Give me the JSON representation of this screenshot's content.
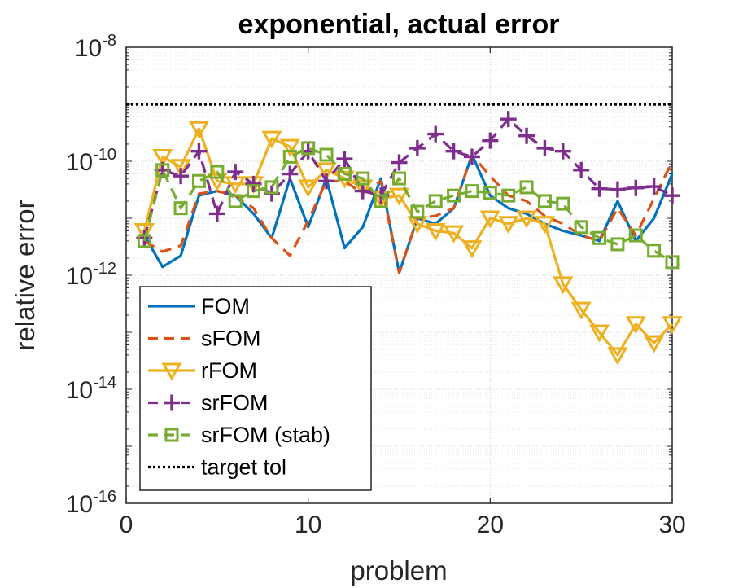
{
  "chart_data": {
    "type": "line",
    "title": "exponential, actual error",
    "xlabel": "problem",
    "ylabel": "relative error",
    "yscale": "log",
    "xlim": [
      0,
      30
    ],
    "ylim": [
      1e-16,
      1e-08
    ],
    "grid": true,
    "legend_position": "bottom-left",
    "x_ticks": [
      {
        "value": 0,
        "label": "0"
      },
      {
        "value": 10,
        "label": "10"
      },
      {
        "value": 20,
        "label": "20"
      },
      {
        "value": 30,
        "label": "30"
      }
    ],
    "y_ticks": [
      {
        "exp": -16,
        "base": "10",
        "sup": "-16"
      },
      {
        "exp": -14,
        "base": "10",
        "sup": "-14"
      },
      {
        "exp": -12,
        "base": "10",
        "sup": "-12"
      },
      {
        "exp": -10,
        "base": "10",
        "sup": "-10"
      },
      {
        "exp": -8,
        "base": "10",
        "sup": "-8"
      }
    ],
    "x": [
      1,
      2,
      3,
      4,
      5,
      6,
      7,
      8,
      9,
      10,
      11,
      12,
      13,
      14,
      15,
      16,
      17,
      18,
      19,
      20,
      21,
      22,
      23,
      24,
      25,
      26,
      27,
      28,
      29,
      30
    ],
    "series": [
      {
        "name": "FOM",
        "color": "#0072BD",
        "dash": "solid",
        "marker": "none",
        "values": [
          5e-12,
          1.4e-12,
          2.2e-12,
          2.5e-11,
          3e-11,
          2.5e-11,
          1.2e-11,
          4.5e-12,
          5e-11,
          7e-12,
          5e-11,
          3e-12,
          7e-12,
          5e-11,
          1.1e-12,
          1e-11,
          8e-12,
          1.5e-11,
          1.3e-10,
          2.5e-11,
          1.5e-11,
          1.2e-11,
          8e-12,
          6e-12,
          5e-12,
          4e-12,
          2e-11,
          4e-12,
          1e-11,
          6e-11
        ]
      },
      {
        "name": "sFOM",
        "color": "#D95319",
        "dash": "dashed",
        "marker": "none",
        "values": [
          4e-12,
          2.6e-12,
          3.3e-12,
          2.7e-11,
          3e-11,
          2.5e-11,
          1.5e-11,
          4.5e-12,
          2.2e-12,
          9e-12,
          4.5e-11,
          4.5e-11,
          2.7e-11,
          4.5e-11,
          1.1e-12,
          1e-11,
          1.1e-11,
          1.5e-11,
          1.3e-10,
          5.5e-11,
          2.5e-11,
          2e-11,
          1.1e-11,
          8e-12,
          5e-12,
          4e-12,
          1.5e-11,
          5e-12,
          2.2e-11,
          1e-10
        ]
      },
      {
        "name": "rFOM",
        "color": "#EDB120",
        "dash": "solid",
        "marker": "triangle-down",
        "values": [
          6e-12,
          1.2e-10,
          8e-11,
          3.7e-10,
          4.5e-11,
          4e-11,
          4e-11,
          2.5e-10,
          1.8e-10,
          3.5e-11,
          7e-11,
          5e-11,
          3.5e-11,
          2.2e-11,
          2.5e-11,
          8e-12,
          6e-12,
          5.5e-12,
          3e-12,
          1e-11,
          8e-12,
          1e-11,
          8e-12,
          7e-13,
          2.5e-13,
          1e-13,
          4e-14,
          1.4e-13,
          6.5e-14,
          1.4e-13
        ]
      },
      {
        "name": "srFOM",
        "color": "#7E2F8E",
        "dash": "dashed",
        "marker": "plus",
        "values": [
          4.5e-12,
          7e-11,
          5.5e-11,
          1.5e-10,
          1.2e-11,
          6.5e-11,
          4e-11,
          2.7e-11,
          6e-11,
          1.5e-10,
          4.5e-11,
          1.1e-10,
          3e-11,
          2.5e-11,
          9.5e-11,
          1.7e-10,
          3e-10,
          1.5e-10,
          1.2e-10,
          2.3e-10,
          5.5e-10,
          2.8e-10,
          1.7e-10,
          1.5e-10,
          7e-11,
          3.3e-11,
          3.2e-11,
          3.4e-11,
          3.6e-11,
          2.5e-11
        ]
      },
      {
        "name": "srFOM (stab)",
        "color": "#77AC30",
        "dash": "dashed",
        "marker": "square",
        "values": [
          4e-12,
          7e-11,
          1.5e-11,
          4.5e-11,
          6.5e-11,
          2e-11,
          3e-11,
          3.5e-11,
          1.2e-10,
          1.7e-10,
          1.3e-10,
          6e-11,
          5e-11,
          2e-11,
          5e-11,
          1.3e-11,
          2e-11,
          2.5e-11,
          3e-11,
          2.8e-11,
          2.5e-11,
          3.5e-11,
          2e-11,
          1.8e-11,
          7e-12,
          4.5e-12,
          3.5e-12,
          5e-12,
          2.7e-12,
          1.7e-12
        ]
      },
      {
        "name": "target tol",
        "color": "#000000",
        "dash": "dotted",
        "marker": "none",
        "constant": 1e-09
      }
    ]
  }
}
